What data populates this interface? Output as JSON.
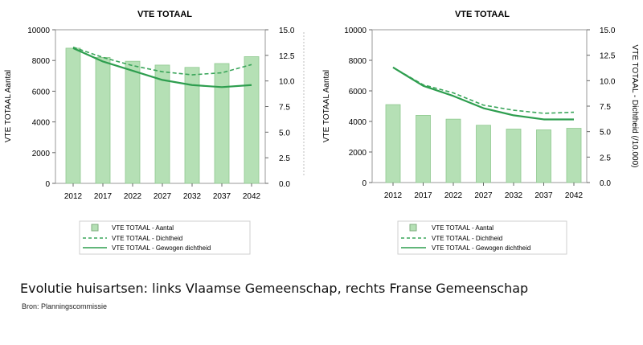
{
  "charts": [
    {
      "title": "VTE TOTAAL",
      "ylabel_left": "VTE TOTAAL Aantal",
      "ylabel_right": "",
      "left_ticks": [
        "0",
        "2000",
        "4000",
        "6000",
        "8000",
        "10000"
      ],
      "right_ticks": [
        "0.0",
        "2.5",
        "5.0",
        "7.5",
        "10.0",
        "12.5",
        "15.0"
      ],
      "legend": [
        "VTE TOTAAL - Aantal",
        "VTE TOTAAL - Dichtheid",
        "VTE TOTAAL - Gewogen dichtheid"
      ]
    },
    {
      "title": "VTE TOTAAL",
      "ylabel_left": "VTE TOTAAL Aantal",
      "ylabel_right": "VTE TOTAAL - Dichtheid (/10.000)",
      "left_ticks": [
        "0",
        "2000",
        "4000",
        "6000",
        "8000",
        "10000"
      ],
      "right_ticks": [
        "0.0",
        "2.5",
        "5.0",
        "7.5",
        "10.0",
        "12.5",
        "15.0"
      ],
      "legend": [
        "VTE TOTAAL - Aantal",
        "VTE TOTAAL - Dichtheid",
        "VTE TOTAAL - Gewogen dichtheid"
      ]
    }
  ],
  "chart_data": [
    {
      "type": "bar",
      "title": "VTE TOTAAL",
      "categories": [
        "2012",
        "2017",
        "2022",
        "2027",
        "2032",
        "2037",
        "2042"
      ],
      "ylabel": "VTE TOTAAL Aantal",
      "ylim": [
        0,
        10000
      ],
      "y2lim": [
        0,
        15
      ],
      "legend_position": "bottom",
      "series": [
        {
          "name": "VTE TOTAAL - Aantal",
          "type": "bar",
          "axis": "left",
          "color": "#b5e0b5",
          "values": [
            8800,
            8200,
            7950,
            7700,
            7550,
            7800,
            8250
          ]
        },
        {
          "name": "VTE TOTAAL - Dichtheid",
          "type": "line",
          "style": "dashed",
          "axis": "right",
          "color": "#3aa55a",
          "values": [
            13.3,
            12.3,
            11.5,
            10.9,
            10.6,
            10.8,
            11.6
          ]
        },
        {
          "name": "VTE TOTAAL - Gewogen dichtheid",
          "type": "line",
          "style": "solid",
          "axis": "right",
          "color": "#2e9e4f",
          "values": [
            13.2,
            11.9,
            11.0,
            10.1,
            9.6,
            9.4,
            9.6
          ]
        }
      ]
    },
    {
      "type": "bar",
      "title": "VTE TOTAAL",
      "categories": [
        "2012",
        "2017",
        "2022",
        "2027",
        "2032",
        "2037",
        "2042"
      ],
      "ylabel": "VTE TOTAAL Aantal",
      "y2label": "VTE TOTAAL - Dichtheid (/10.000)",
      "ylim": [
        0,
        10000
      ],
      "y2lim": [
        0,
        15
      ],
      "legend_position": "bottom",
      "series": [
        {
          "name": "VTE TOTAAL - Aantal",
          "type": "bar",
          "axis": "left",
          "color": "#b5e0b5",
          "values": [
            5100,
            4400,
            4150,
            3750,
            3500,
            3450,
            3550
          ]
        },
        {
          "name": "VTE TOTAAL - Dichtheid",
          "type": "line",
          "style": "dashed",
          "axis": "right",
          "color": "#3aa55a",
          "values": [
            11.3,
            9.6,
            8.8,
            7.6,
            7.1,
            6.8,
            6.9
          ]
        },
        {
          "name": "VTE TOTAAL - Gewogen dichtheid",
          "type": "line",
          "style": "solid",
          "axis": "right",
          "color": "#2e9e4f",
          "values": [
            11.3,
            9.5,
            8.5,
            7.3,
            6.6,
            6.2,
            6.2
          ]
        }
      ]
    }
  ],
  "caption": "Evolutie huisartsen: links Vlaamse Gemeenschap, rechts Franse Gemeenschap",
  "source": "Bron: Planningscommissie"
}
